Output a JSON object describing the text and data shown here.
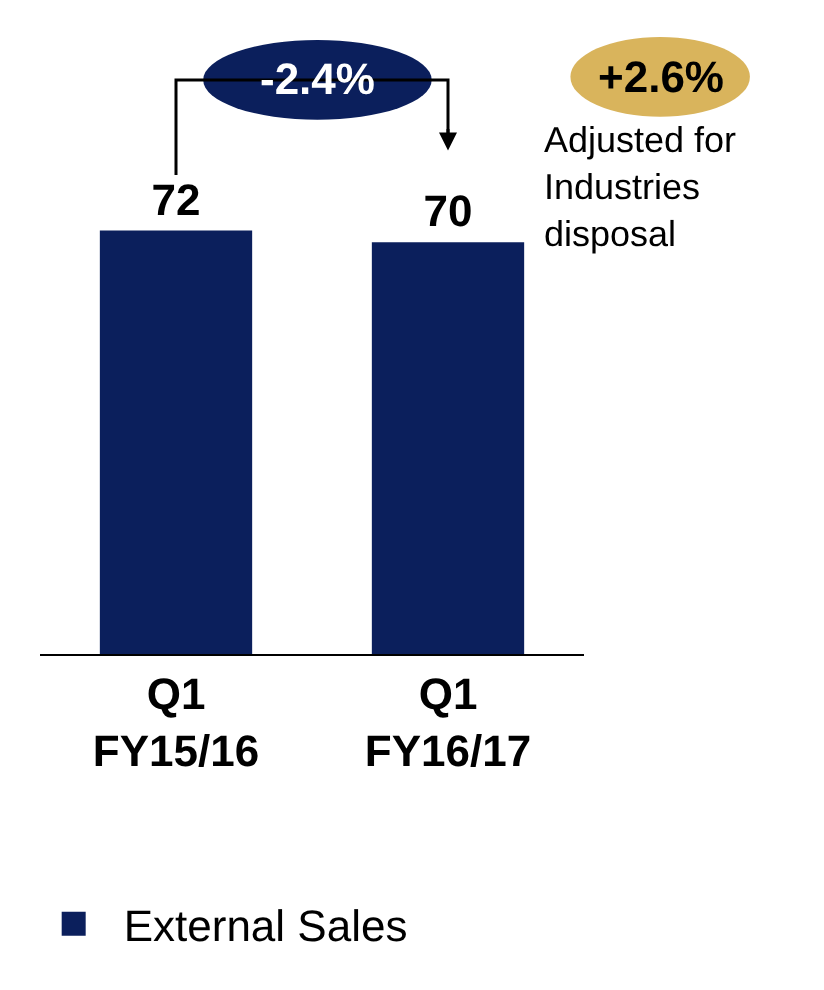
{
  "chart_data": {
    "type": "bar",
    "categories": [
      "Q1\nFY15/16",
      "Q1\nFY16/17"
    ],
    "series": [
      {
        "name": "External Sales",
        "color": "#0b1f5c",
        "values": [
          72,
          70
        ]
      }
    ],
    "data_labels": true,
    "annotations": [
      "-2.4%",
      "+2.6%",
      "Adjusted for\nIndustries\ndisposal"
    ],
    "legend": "bottom",
    "grid": false
  }
}
